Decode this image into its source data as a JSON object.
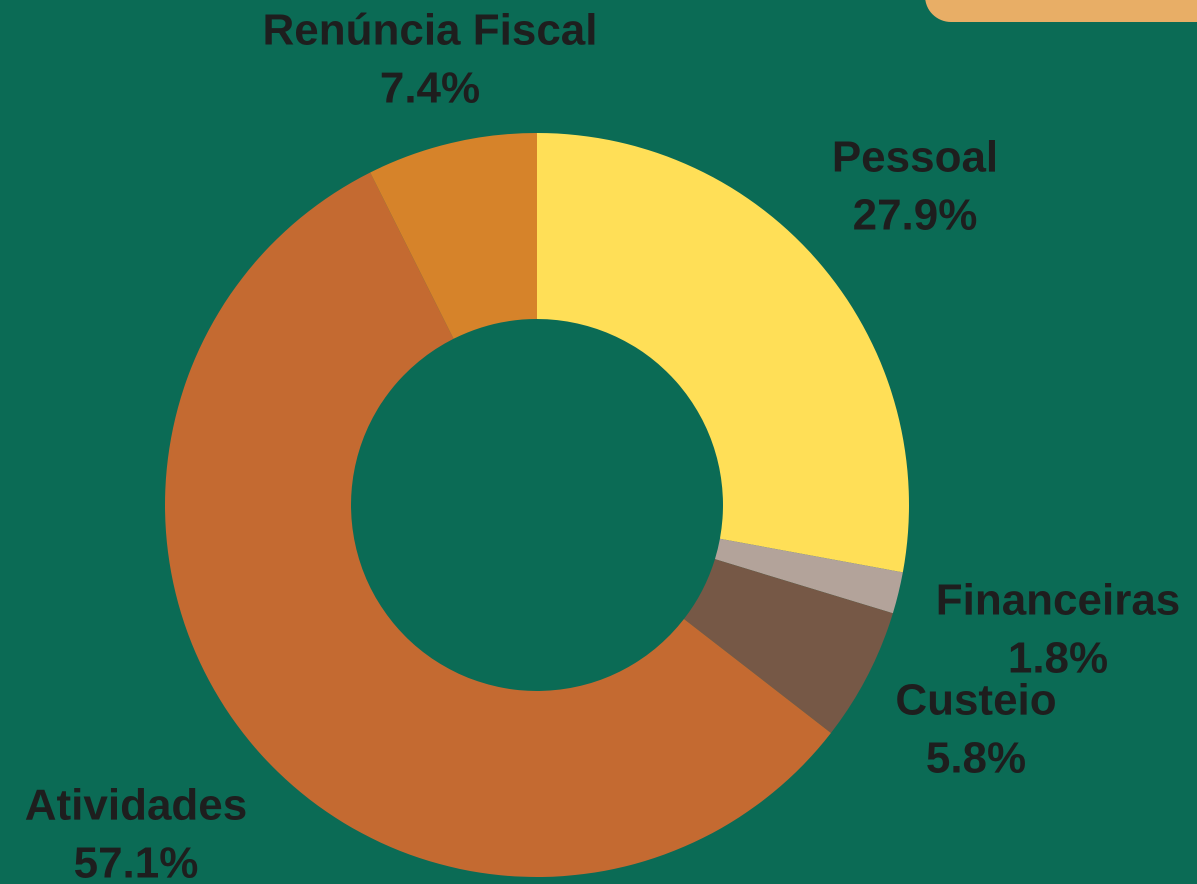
{
  "chart_data": {
    "type": "donut",
    "categories": [
      "Pessoal",
      "Financeiras",
      "Custeio",
      "Atividades",
      "Renúncia Fiscal"
    ],
    "values": [
      27.9,
      1.8,
      5.8,
      57.1,
      7.4
    ],
    "value_labels": [
      "27.9%",
      "1.8%",
      "5.8%",
      "57.1%",
      "7.4%"
    ],
    "colors": [
      "#ffdf57",
      "#b3a39a",
      "#765846",
      "#c46a31",
      "#d6832a"
    ]
  }
}
